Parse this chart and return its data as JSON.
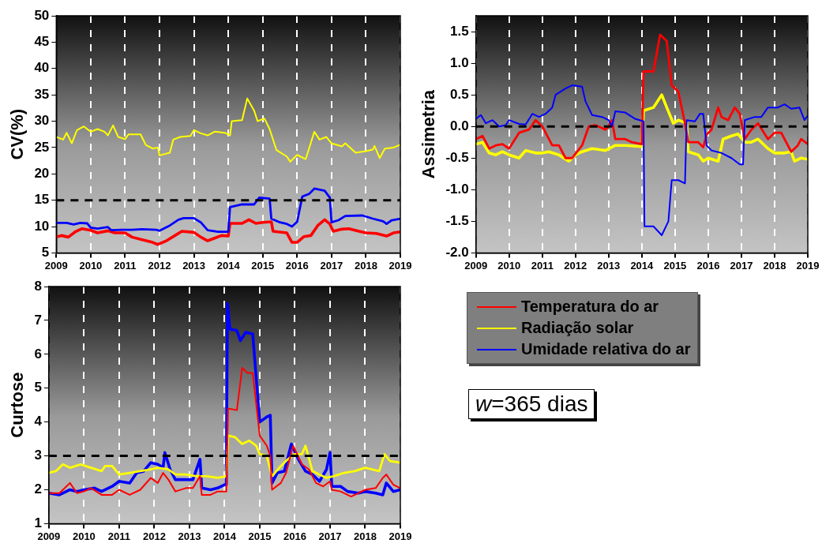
{
  "chart_data": [
    {
      "type": "line",
      "ylabel": "CV(%)",
      "xlim": [
        2009,
        2019
      ],
      "xticks": [
        2009,
        2010,
        2011,
        2012,
        2013,
        2014,
        2015,
        2016,
        2017,
        2018,
        2019
      ],
      "ylim": [
        5,
        50
      ],
      "yticks": [
        5,
        10,
        15,
        20,
        25,
        30,
        35,
        40,
        45,
        50
      ],
      "grid": "x",
      "legend": false,
      "ref_lines": [
        {
          "axis": "y",
          "value": 15,
          "color": "#000000",
          "line_style": "dashed"
        }
      ],
      "series": [
        {
          "color": "#ffff00",
          "x": [
            2009,
            2009.2,
            2009.3,
            2009.45,
            2009.6,
            2009.8,
            2010,
            2010.2,
            2010.4,
            2010.5,
            2010.65,
            2010.8,
            2011,
            2011.1,
            2011.3,
            2011.45,
            2011.6,
            2011.8,
            2011.95,
            2012,
            2012.3,
            2012.4,
            2012.6,
            2012.9,
            2013,
            2013.2,
            2013.4,
            2013.6,
            2013.9,
            2014.05,
            2014.1,
            2014.4,
            2014.55,
            2014.75,
            2014.85,
            2015.05,
            2015.2,
            2015.4,
            2015.7,
            2015.8,
            2016,
            2016.25,
            2016.5,
            2016.65,
            2016.85,
            2017,
            2017.3,
            2017.4,
            2017.7,
            2018,
            2018.2,
            2018.25,
            2018.4,
            2018.55,
            2018.8,
            2019
          ],
          "values": [
            27,
            26.5,
            27.8,
            25.8,
            28.3,
            29,
            28,
            28.5,
            28,
            27.3,
            29.2,
            27,
            26.6,
            27.5,
            27.5,
            27.5,
            25.5,
            24.8,
            25,
            23.5,
            24,
            26.5,
            27,
            27.2,
            28.3,
            27.7,
            27.3,
            28,
            27.8,
            27.3,
            30,
            30.2,
            34.3,
            32,
            30,
            30.5,
            28.5,
            24.5,
            23.3,
            22.3,
            23.6,
            22.8,
            28,
            26.5,
            27,
            25.8,
            25.2,
            25.8,
            24,
            24.3,
            24.6,
            25.3,
            23,
            24.8,
            25,
            25.5
          ]
        },
        {
          "color": "#0000ff",
          "x": [
            2009,
            2009.3,
            2009.5,
            2009.7,
            2009.9,
            2010,
            2010.2,
            2010.5,
            2010.6,
            2010.9,
            2011.2,
            2011.5,
            2011.9,
            2012,
            2012.3,
            2012.55,
            2012.7,
            2013,
            2013.2,
            2013.4,
            2013.7,
            2014,
            2014.05,
            2014.4,
            2014.75,
            2014.9,
            2015.2,
            2015.25,
            2015.5,
            2015.7,
            2015.85,
            2016,
            2016.15,
            2016.35,
            2016.5,
            2016.8,
            2016.95,
            2017,
            2017.2,
            2017.4,
            2017.9,
            2018.2,
            2018.5,
            2018.6,
            2018.75,
            2019
          ],
          "values": [
            10.7,
            10.7,
            10.4,
            10.7,
            10.6,
            9.8,
            9.6,
            9.9,
            9.3,
            9.4,
            9.4,
            9.5,
            9.4,
            9.2,
            10.2,
            11.3,
            11.6,
            11.6,
            10.8,
            9.3,
            9,
            9,
            13.7,
            14.2,
            14.2,
            15.5,
            15.3,
            11.5,
            10.8,
            10.5,
            10,
            10.9,
            15.7,
            16.2,
            17.2,
            16.8,
            15.5,
            10.8,
            11.2,
            12,
            12.1,
            11.5,
            11,
            10.5,
            11.2,
            11.5
          ]
        },
        {
          "color": "#ff0000",
          "x": [
            2009,
            2009.15,
            2009.35,
            2009.55,
            2009.75,
            2010,
            2010.2,
            2010.5,
            2010.7,
            2011,
            2011.2,
            2011.5,
            2011.8,
            2011.95,
            2012.2,
            2012.45,
            2012.65,
            2013,
            2013.2,
            2013.4,
            2013.6,
            2013.8,
            2014,
            2014.05,
            2014.4,
            2014.6,
            2014.8,
            2015,
            2015.25,
            2015.3,
            2015.7,
            2015.85,
            2016,
            2016.2,
            2016.4,
            2016.6,
            2016.8,
            2016.95,
            2017.05,
            2017.3,
            2017.5,
            2017.8,
            2018,
            2018.3,
            2018.6,
            2018.8,
            2019
          ],
          "values": [
            8,
            8.3,
            8,
            9,
            9.6,
            9.3,
            8.8,
            9.2,
            8.8,
            8.8,
            8,
            7.5,
            7,
            6.6,
            7.3,
            8.3,
            9.1,
            8.9,
            8,
            7.3,
            7.8,
            8.3,
            8.2,
            10.6,
            10.6,
            11.3,
            10.6,
            10.8,
            10.9,
            9.1,
            8.8,
            7,
            7,
            8.1,
            8.3,
            10.2,
            11.3,
            10.5,
            9.1,
            9.5,
            9.6,
            9.1,
            8.8,
            8.7,
            8.2,
            8.8,
            9
          ]
        }
      ]
    },
    {
      "type": "line",
      "ylabel": "Assimetria",
      "xlim": [
        2009,
        2019
      ],
      "xticks": [
        2009,
        2010,
        2011,
        2012,
        2013,
        2014,
        2015,
        2016,
        2017,
        2018,
        2019
      ],
      "ylim": [
        -2,
        1.75
      ],
      "yticks": [
        {
          "value": -2,
          "label": "-2.0"
        },
        -1.5,
        {
          "value": -1,
          "label": "-1.0"
        },
        -0.5,
        {
          "value": 0,
          "label": "0.0"
        },
        0.5,
        {
          "value": 1,
          "label": "1.0"
        },
        1.5
      ],
      "grid": "x",
      "legend": false,
      "ref_lines": [
        {
          "axis": "y",
          "value": 0,
          "color": "#000000",
          "line_style": "dashed"
        }
      ],
      "series": [
        {
          "color": "#0000ff",
          "x": [
            2009,
            2009.15,
            2009.3,
            2009.5,
            2009.7,
            2009.9,
            2010,
            2010.3,
            2010.5,
            2010.7,
            2010.9,
            2011.1,
            2011.3,
            2011.4,
            2011.7,
            2011.9,
            2012.2,
            2012.3,
            2012.5,
            2012.8,
            2013,
            2013.1,
            2013.2,
            2013.5,
            2013.8,
            2014.05,
            2014.08,
            2014.35,
            2014.6,
            2014.8,
            2014.9,
            2015.1,
            2015.3,
            2015.35,
            2015.6,
            2015.75,
            2015.85,
            2015.95,
            2016.1,
            2016.4,
            2016.7,
            2016.95,
            2017.05,
            2017.1,
            2017.4,
            2017.6,
            2017.8,
            2018.1,
            2018.3,
            2018.5,
            2018.75,
            2018.9,
            2019
          ],
          "values": [
            0.12,
            0.18,
            0.05,
            0.1,
            0,
            0.02,
            0.1,
            0.04,
            0.03,
            0.2,
            0.15,
            0.2,
            0.3,
            0.5,
            0.6,
            0.65,
            0.63,
            0.4,
            0.18,
            0.15,
            0.1,
            0,
            0.24,
            0.22,
            0.12,
            0.08,
            -1.58,
            -1.58,
            -1.72,
            -1.5,
            -0.85,
            -0.85,
            -0.9,
            0.1,
            0.08,
            0.2,
            0.2,
            -0.3,
            -0.38,
            -0.42,
            -0.5,
            -0.6,
            -0.6,
            0.1,
            0.15,
            0.15,
            0.3,
            0.3,
            0.35,
            0.28,
            0.3,
            0.1,
            0.17
          ]
        },
        {
          "color": "#ff0000",
          "x": [
            2009,
            2009.2,
            2009.4,
            2009.6,
            2009.8,
            2010,
            2010.3,
            2010.6,
            2010.8,
            2011,
            2011.3,
            2011.5,
            2011.7,
            2011.9,
            2012.2,
            2012.4,
            2012.6,
            2012.9,
            2013,
            2013.1,
            2013.2,
            2013.5,
            2013.7,
            2014,
            2014.05,
            2014.35,
            2014.55,
            2014.75,
            2014.9,
            2015.1,
            2015.3,
            2015.4,
            2015.7,
            2015.85,
            2015.95,
            2016.1,
            2016.3,
            2016.4,
            2016.6,
            2016.8,
            2016.95,
            2017.1,
            2017.3,
            2017.5,
            2017.8,
            2018,
            2018.2,
            2018.5,
            2018.7,
            2018.8,
            2019
          ],
          "values": [
            -0.2,
            -0.15,
            -0.35,
            -0.3,
            -0.28,
            -0.35,
            -0.1,
            -0.05,
            0.1,
            0,
            -0.3,
            -0.3,
            -0.5,
            -0.5,
            -0.3,
            0,
            0.02,
            -0.05,
            0,
            0.1,
            -0.2,
            -0.2,
            -0.25,
            -0.28,
            0.87,
            0.87,
            1.45,
            1.35,
            0.65,
            0.55,
            0.05,
            -0.25,
            -0.25,
            -0.33,
            -0.13,
            -0.05,
            0.3,
            0.15,
            0.1,
            0.3,
            0.2,
            -0.2,
            -0.05,
            0.05,
            -0.2,
            -0.1,
            -0.1,
            -0.4,
            -0.3,
            -0.2,
            -0.28
          ]
        },
        {
          "color": "#ffff00",
          "x": [
            2009,
            2009.2,
            2009.4,
            2009.6,
            2009.8,
            2010,
            2010.3,
            2010.5,
            2010.8,
            2011,
            2011.2,
            2011.5,
            2011.8,
            2012,
            2012.2,
            2012.5,
            2012.9,
            2013.2,
            2013.5,
            2014,
            2014.05,
            2014.35,
            2014.6,
            2014.75,
            2014.95,
            2015.1,
            2015.35,
            2015.4,
            2015.7,
            2015.85,
            2016,
            2016.3,
            2016.45,
            2016.7,
            2016.9,
            2017.1,
            2017.3,
            2017.5,
            2017.8,
            2018,
            2018.3,
            2018.5,
            2018.6,
            2018.8,
            2019
          ],
          "values": [
            -0.28,
            -0.25,
            -0.42,
            -0.45,
            -0.4,
            -0.45,
            -0.5,
            -0.38,
            -0.42,
            -0.42,
            -0.4,
            -0.45,
            -0.55,
            -0.45,
            -0.4,
            -0.35,
            -0.38,
            -0.3,
            -0.3,
            -0.32,
            0.25,
            0.3,
            0.5,
            0.3,
            0.05,
            0.1,
            0.05,
            -0.4,
            -0.45,
            -0.55,
            -0.5,
            -0.55,
            -0.2,
            -0.15,
            -0.12,
            -0.25,
            -0.25,
            -0.2,
            -0.35,
            -0.42,
            -0.42,
            -0.4,
            -0.55,
            -0.5,
            -0.52
          ]
        }
      ]
    },
    {
      "type": "line",
      "ylabel": "Curtose",
      "xlim": [
        2009,
        2019
      ],
      "xticks": [
        2009,
        2010,
        2011,
        2012,
        2013,
        2014,
        2015,
        2016,
        2017,
        2018,
        2019
      ],
      "ylim": [
        1,
        8
      ],
      "yticks": [
        1,
        2,
        3,
        4,
        5,
        6,
        7,
        8
      ],
      "grid": "x",
      "legend": "right",
      "ref_lines": [
        {
          "axis": "y",
          "value": 3,
          "color": "#000000",
          "line_style": "dashed"
        }
      ],
      "annotations": [
        "w=365 dias"
      ],
      "series": [
        {
          "name": "Temperatura do ar",
          "color": "#ff0000",
          "x": [
            2009,
            2009.3,
            2009.5,
            2009.6,
            2009.8,
            2010,
            2010.2,
            2010.5,
            2010.8,
            2011,
            2011.3,
            2011.6,
            2011.9,
            2012.1,
            2012.25,
            2012.4,
            2012.6,
            2012.9,
            2013.1,
            2013.3,
            2013.35,
            2013.6,
            2013.8,
            2014,
            2014.05,
            2014.1,
            2014.35,
            2014.5,
            2014.65,
            2014.8,
            2015,
            2015.2,
            2015.3,
            2015.35,
            2015.6,
            2015.75,
            2015.95,
            2016.2,
            2016.4,
            2016.6,
            2016.8,
            2017,
            2017.05,
            2017.3,
            2017.6,
            2017.8,
            2018,
            2018.3,
            2018.5,
            2018.6,
            2018.8,
            2019
          ],
          "values": [
            1.9,
            1.9,
            2.1,
            2.2,
            1.9,
            1.95,
            2.05,
            1.85,
            1.85,
            2,
            1.85,
            2,
            2.35,
            2.2,
            2.5,
            2.3,
            1.95,
            2.05,
            2.05,
            2.4,
            1.85,
            1.85,
            1.95,
            1.95,
            1.95,
            4.4,
            4.35,
            5.6,
            5.45,
            5.45,
            3.6,
            3.3,
            3,
            2,
            2.2,
            2.5,
            3.3,
            2.75,
            2.6,
            2.2,
            2.1,
            2.25,
            2,
            1.95,
            1.8,
            1.9,
            2,
            2.05,
            2.35,
            2.45,
            2.15,
            2.05
          ]
        },
        {
          "name": "Radiação solar",
          "color": "#ffff00",
          "x": [
            2009,
            2009.2,
            2009.4,
            2009.6,
            2009.9,
            2010.2,
            2010.5,
            2010.6,
            2010.8,
            2011,
            2011.3,
            2011.6,
            2011.9,
            2012.1,
            2012.4,
            2012.6,
            2012.9,
            2013.2,
            2013.5,
            2013.8,
            2014.05,
            2014.1,
            2014.3,
            2014.5,
            2014.7,
            2014.9,
            2015,
            2015.2,
            2015.35,
            2015.6,
            2015.8,
            2016,
            2016.2,
            2016.3,
            2016.5,
            2016.7,
            2016.9,
            2017.1,
            2017.4,
            2017.7,
            2018,
            2018.2,
            2018.4,
            2018.55,
            2018.7,
            2019
          ],
          "values": [
            2.5,
            2.55,
            2.75,
            2.65,
            2.75,
            2.65,
            2.55,
            2.7,
            2.7,
            2.45,
            2.5,
            2.55,
            2.6,
            2.65,
            2.6,
            2.45,
            2.45,
            2.4,
            2.4,
            2.35,
            2.4,
            3.6,
            3.55,
            3.35,
            3.45,
            3.3,
            3.05,
            3,
            2.4,
            2.7,
            2.9,
            3.05,
            3.05,
            3.3,
            2.55,
            2.45,
            2.35,
            2.4,
            2.5,
            2.55,
            2.65,
            2.6,
            2.55,
            3.05,
            2.85,
            2.8
          ]
        },
        {
          "name": "Umidade relativa do ar",
          "color": "#0000ff",
          "x": [
            2009,
            2009.3,
            2009.6,
            2009.8,
            2010,
            2010.3,
            2010.5,
            2010.8,
            2011,
            2011.3,
            2011.5,
            2011.7,
            2011.9,
            2012.1,
            2012.25,
            2012.3,
            2012.45,
            2012.6,
            2012.9,
            2013.1,
            2013.3,
            2013.35,
            2013.6,
            2013.8,
            2014,
            2014.05,
            2014.08,
            2014.15,
            2014.35,
            2014.45,
            2014.6,
            2014.8,
            2015,
            2015.2,
            2015.3,
            2015.35,
            2015.5,
            2015.7,
            2015.9,
            2016.1,
            2016.3,
            2016.5,
            2016.7,
            2016.9,
            2017,
            2017.05,
            2017.3,
            2017.5,
            2017.8,
            2018,
            2018.3,
            2018.5,
            2018.6,
            2018.8,
            2019
          ],
          "values": [
            1.9,
            1.85,
            2,
            1.95,
            2,
            2.05,
            1.95,
            2.1,
            2.25,
            2.2,
            2.5,
            2.55,
            2.8,
            2.75,
            2.65,
            3.1,
            2.6,
            2.3,
            2.3,
            2.3,
            2.9,
            2.05,
            2,
            2.05,
            2.15,
            2.15,
            7.5,
            6.75,
            6.7,
            6.4,
            6.65,
            6.6,
            4,
            4.15,
            4.2,
            2.2,
            2.5,
            2.55,
            3.35,
            2.9,
            2.55,
            2.45,
            2.25,
            2.6,
            3.1,
            2.1,
            2.1,
            1.95,
            1.9,
            1.95,
            1.9,
            1.85,
            2.2,
            1.95,
            2
          ]
        }
      ]
    }
  ]
}
